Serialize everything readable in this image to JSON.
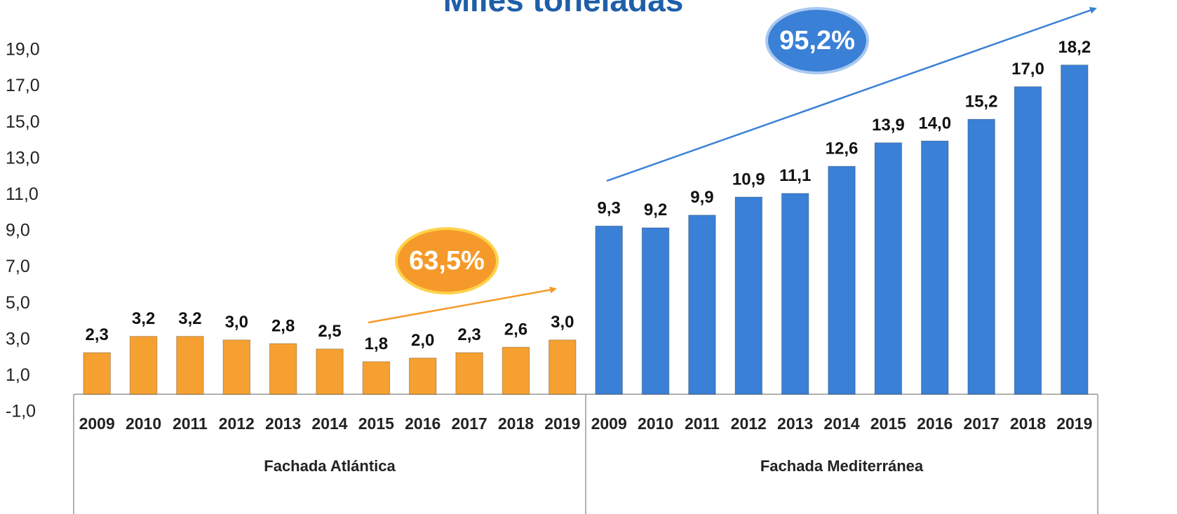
{
  "chart_data": {
    "type": "bar",
    "title": "Miles toneladas",
    "groups": [
      {
        "name": "Fachada Atlántica",
        "color": "#f5a030",
        "categories": [
          "2009",
          "2010",
          "2011",
          "2012",
          "2013",
          "2014",
          "2015",
          "2016",
          "2017",
          "2018",
          "2019"
        ],
        "values": [
          2.3,
          3.2,
          3.2,
          3.0,
          2.8,
          2.5,
          1.8,
          2.0,
          2.3,
          2.6,
          3.0
        ],
        "value_labels": [
          "2,3",
          "3,2",
          "3,2",
          "3,0",
          "2,8",
          "2,5",
          "1,8",
          "2,0",
          "2,3",
          "2,6",
          "3,0"
        ]
      },
      {
        "name": "Fachada Mediterránea",
        "color": "#3a80d6",
        "categories": [
          "2009",
          "2010",
          "2011",
          "2012",
          "2013",
          "2014",
          "2015",
          "2016",
          "2017",
          "2018",
          "2019"
        ],
        "values": [
          9.3,
          9.2,
          9.9,
          10.9,
          11.1,
          12.6,
          13.9,
          14.0,
          15.2,
          17.0,
          18.2
        ],
        "value_labels": [
          "9,3",
          "9,2",
          "9,9",
          "10,9",
          "11,1",
          "12,6",
          "13,9",
          "14,0",
          "15,2",
          "17,0",
          "18,2"
        ]
      }
    ],
    "annotations": [
      {
        "text": "63,5%",
        "color": "#f59a2a"
      },
      {
        "text": "95,2%",
        "color": "#3a80d6"
      }
    ],
    "ylim": [
      -1,
      19
    ],
    "yticks": [
      {
        "value": -1,
        "label": "-1,0"
      },
      {
        "value": 1,
        "label": "1,0"
      },
      {
        "value": 3,
        "label": "3,0"
      },
      {
        "value": 5,
        "label": "5,0"
      },
      {
        "value": 7,
        "label": "7,0"
      },
      {
        "value": 9,
        "label": "9,0"
      },
      {
        "value": 11,
        "label": "11,0"
      },
      {
        "value": 13,
        "label": "13,0"
      },
      {
        "value": 15,
        "label": "15,0"
      },
      {
        "value": 17,
        "label": "17,0"
      },
      {
        "value": 19,
        "label": "19,0"
      }
    ],
    "grid": false
  }
}
